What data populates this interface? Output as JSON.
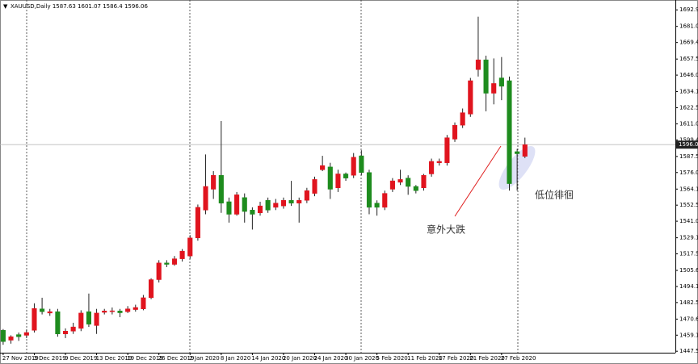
{
  "chart_data": {
    "type": "candlestick",
    "title": "XAUUSD,Daily",
    "categories": [
      "27 Nov 2019",
      null,
      null,
      null,
      "3 Dec 2019",
      null,
      null,
      null,
      "9 Dec 2019",
      null,
      null,
      null,
      "13 Dec 2019",
      null,
      null,
      null,
      "19 Dec 2019",
      null,
      null,
      null,
      "26 Dec 2019",
      null,
      null,
      null,
      "2 Jan 2020",
      null,
      null,
      null,
      "8 Jan 2020",
      null,
      null,
      null,
      "14 Jan 2020",
      null,
      null,
      null,
      "20 Jan 2020",
      null,
      null,
      null,
      "24 Jan 2020",
      null,
      null,
      null,
      "30 Jan 2020",
      null,
      null,
      null,
      "5 Feb 2020",
      null,
      null,
      null,
      "11 Feb 2020",
      null,
      null,
      null,
      "17 Feb 2020",
      null,
      null,
      null,
      "21 Feb 2020",
      null,
      null,
      null,
      "27 Feb 2020",
      null,
      null,
      null
    ],
    "open": [
      1462.6,
      1455.5,
      1459.5,
      1459,
      1462.6,
      1478,
      1475,
      1476,
      1460,
      1462,
      1464,
      1476,
      1466,
      1475.5,
      1476,
      1476.5,
      1476,
      1477.5,
      1478,
      1486,
      1499,
      1511,
      1510,
      1514,
      1516,
      1529,
      1549,
      1564,
      1574,
      1555,
      1546,
      1558,
      1549,
      1547,
      1556,
      1551,
      1552,
      1556,
      1554,
      1556,
      1561,
      1578,
      1580,
      1565,
      1575,
      1574,
      1588,
      1576,
      1554,
      1551,
      1564,
      1569,
      1572,
      1566,
      1565,
      1575,
      1583,
      1583,
      1600,
      1610,
      1618,
      1650,
      1657,
      1633,
      1644,
      1642,
      1591,
      1587.63
    ],
    "high": [
      1463.5,
      1459,
      1461,
      1463,
      1482,
      1486,
      1478,
      1478,
      1464,
      1468,
      1477,
      1489,
      1478,
      1478,
      1479,
      1478,
      1480,
      1481,
      1488,
      1500,
      1513,
      1513,
      1516,
      1521,
      1531,
      1553,
      1589,
      1577,
      1613,
      1558,
      1562,
      1561,
      1551,
      1555,
      1558,
      1557,
      1558,
      1570,
      1558,
      1565,
      1573,
      1588,
      1583,
      1578,
      1576,
      1590,
      1592,
      1578,
      1556,
      1563,
      1572,
      1578,
      1574,
      1567,
      1575,
      1586,
      1586,
      1603,
      1612,
      1622,
      1644,
      1688,
      1660,
      1658,
      1659,
      1645,
      1593,
      1601.07
    ],
    "low": [
      1452.2,
      1453,
      1455,
      1457,
      1461,
      1474,
      1473,
      1458,
      1457,
      1460,
      1462,
      1465,
      1460,
      1474,
      1474,
      1472,
      1475,
      1476,
      1477,
      1485,
      1497,
      1508,
      1509,
      1512,
      1514,
      1527,
      1546,
      1557,
      1547,
      1540,
      1545,
      1540,
      1535,
      1545,
      1547,
      1549,
      1550,
      1552,
      1540,
      1554,
      1559,
      1577,
      1557,
      1562,
      1570,
      1572,
      1574,
      1546,
      1545,
      1549,
      1562,
      1567,
      1560,
      1561,
      1563,
      1573,
      1581,
      1581,
      1598,
      1608,
      1616,
      1645,
      1620,
      1625,
      1628,
      1563,
      1563,
      1586.4
    ],
    "close": [
      1454.5,
      1458,
      1458,
      1461,
      1478.3,
      1476,
      1476,
      1460,
      1462,
      1465,
      1475,
      1467,
      1475,
      1476.5,
      1476.6,
      1475.2,
      1478,
      1479,
      1486,
      1499,
      1511,
      1510,
      1514,
      1519.5,
      1529,
      1551,
      1566,
      1574,
      1554,
      1546,
      1560,
      1548,
      1546,
      1552,
      1549,
      1554,
      1556,
      1554,
      1556,
      1563,
      1571,
      1581,
      1564,
      1575,
      1572,
      1587,
      1576,
      1551,
      1551,
      1561,
      1570,
      1571,
      1566,
      1563,
      1574,
      1584,
      1584,
      1601,
      1610,
      1619,
      1642,
      1657,
      1633,
      1640,
      1638,
      1568,
      1589.5,
      1596.06
    ],
    "up_color": "#e0141e",
    "down_color": "#1e8c1e",
    "wick_color": "#222222",
    "ylim": [
      1446.5,
      1700
    ],
    "yticks": [
      {
        "value": 1692.9,
        "label": "1692.90"
      },
      {
        "value": 1681.05,
        "label": "1681.05"
      },
      {
        "value": 1669.45,
        "label": "1669.45"
      },
      {
        "value": 1657.55,
        "label": "1657.55"
      },
      {
        "value": 1646.0,
        "label": "1646.00"
      },
      {
        "value": 1634.15,
        "label": "1634.15"
      },
      {
        "value": 1622.55,
        "label": "1622.55"
      },
      {
        "value": 1611.0,
        "label": "1611.00"
      },
      {
        "value": 1599.45,
        "label": "1599.45"
      },
      {
        "value": 1587.55,
        "label": "1587.55"
      },
      {
        "value": 1576.0,
        "label": "1576.00"
      },
      {
        "value": 1564.1,
        "label": "1564.10"
      },
      {
        "value": 1552.55,
        "label": "1552.55"
      },
      {
        "value": 1541.0,
        "label": "1541.00"
      },
      {
        "value": 1529.1,
        "label": "1529.10"
      },
      {
        "value": 1517.55,
        "label": "1517.55"
      },
      {
        "value": 1505.65,
        "label": "1505.65"
      },
      {
        "value": 1494.1,
        "label": "1494.10"
      },
      {
        "value": 1482.55,
        "label": "1482.55"
      },
      {
        "value": 1470.65,
        "label": "1470.65"
      },
      {
        "value": 1459.1,
        "label": "1459.10"
      },
      {
        "value": 1447.55,
        "label": "1447.55"
      }
    ],
    "annotations": [
      "意外大跌",
      "低位徘徊"
    ]
  }
}
